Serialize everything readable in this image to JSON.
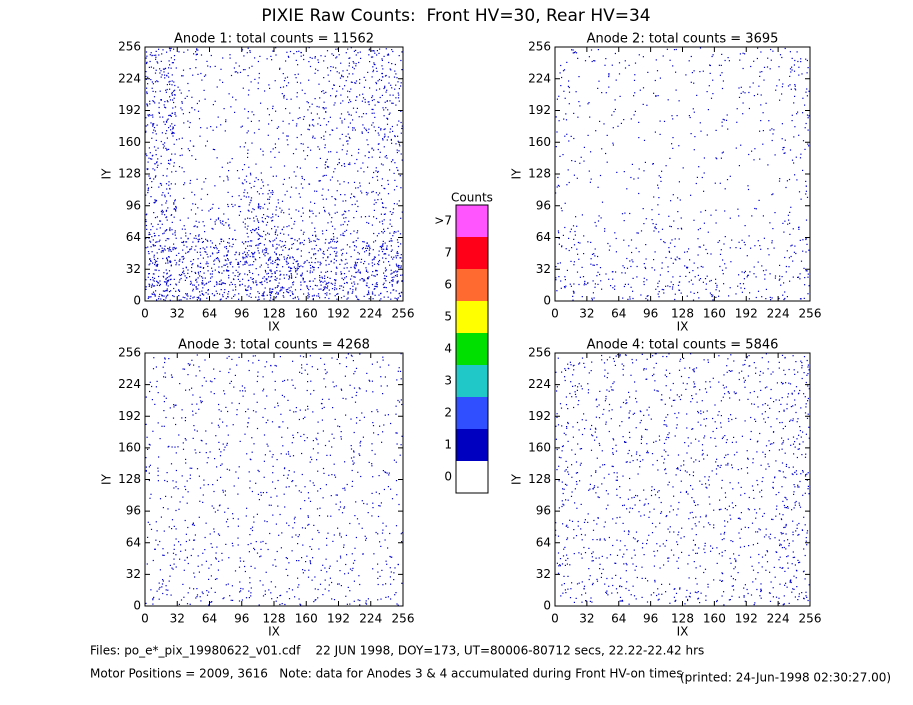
{
  "title": "PIXIE Raw Counts:  Front HV=30, Rear HV=34",
  "chart_data": [
    {
      "type": "density",
      "title": "Anode 1: total counts = 11562",
      "xlabel": "IX",
      "ylabel": "IY",
      "color": "#0000cc",
      "xlim": [
        0,
        256
      ],
      "ylim": [
        0,
        256
      ],
      "xticks": [
        0,
        32,
        64,
        96,
        128,
        160,
        192,
        224,
        256
      ],
      "yticks": [
        0,
        32,
        64,
        96,
        128,
        160,
        192,
        224,
        256
      ],
      "xbins": [
        0,
        32,
        64,
        96,
        128,
        160,
        192,
        224,
        256
      ],
      "ybins": [
        0,
        32,
        64,
        96,
        128,
        160,
        192,
        224,
        256
      ],
      "values": [
        [
          400,
          350,
          300,
          350,
          350,
          350,
          300,
          350
        ],
        [
          350,
          300,
          300,
          350,
          350,
          300,
          250,
          300
        ],
        [
          250,
          100,
          120,
          250,
          150,
          120,
          120,
          150
        ],
        [
          200,
          60,
          60,
          180,
          80,
          100,
          100,
          120
        ],
        [
          200,
          50,
          40,
          70,
          60,
          90,
          120,
          150
        ],
        [
          250,
          60,
          40,
          60,
          80,
          120,
          150,
          180
        ],
        [
          250,
          80,
          40,
          60,
          80,
          120,
          150,
          200
        ],
        [
          250,
          100,
          60,
          80,
          100,
          120,
          150,
          200
        ]
      ]
    },
    {
      "type": "density",
      "title": "Anode 2: total counts = 3695",
      "xlabel": "IX",
      "ylabel": "IY",
      "color": "#0000cc",
      "xlim": [
        0,
        256
      ],
      "ylim": [
        0,
        256
      ],
      "xticks": [
        0,
        32,
        64,
        96,
        128,
        160,
        192,
        224,
        256
      ],
      "yticks": [
        0,
        32,
        64,
        96,
        128,
        160,
        192,
        224,
        256
      ],
      "xbins": [
        0,
        32,
        64,
        96,
        128,
        160,
        192,
        224,
        256
      ],
      "ybins": [
        0,
        32,
        64,
        96,
        128,
        160,
        192,
        224,
        256
      ],
      "values": [
        [
          120,
          100,
          90,
          120,
          110,
          100,
          90,
          120
        ],
        [
          90,
          70,
          80,
          100,
          80,
          70,
          60,
          90
        ],
        [
          60,
          30,
          40,
          80,
          30,
          30,
          30,
          60
        ],
        [
          40,
          20,
          20,
          50,
          20,
          20,
          20,
          60
        ],
        [
          40,
          30,
          20,
          30,
          20,
          30,
          30,
          60
        ],
        [
          50,
          40,
          30,
          30,
          30,
          40,
          40,
          70
        ],
        [
          50,
          40,
          30,
          30,
          40,
          40,
          50,
          80
        ],
        [
          60,
          50,
          40,
          40,
          50,
          50,
          60,
          100
        ]
      ]
    },
    {
      "type": "density",
      "title": "Anode 3: total counts = 4268",
      "xlabel": "IX",
      "ylabel": "IY",
      "color": "#0000cc",
      "xlim": [
        0,
        256
      ],
      "ylim": [
        0,
        256
      ],
      "xticks": [
        0,
        32,
        64,
        96,
        128,
        160,
        192,
        224,
        256
      ],
      "yticks": [
        0,
        32,
        64,
        96,
        128,
        160,
        192,
        224,
        256
      ],
      "xbins": [
        0,
        32,
        64,
        96,
        128,
        160,
        192,
        224,
        256
      ],
      "ybins": [
        0,
        32,
        64,
        96,
        128,
        160,
        192,
        224,
        256
      ],
      "values": [
        [
          90,
          90,
          80,
          80,
          80,
          80,
          70,
          70
        ],
        [
          80,
          80,
          80,
          70,
          70,
          70,
          70,
          70
        ],
        [
          65,
          65,
          60,
          60,
          65,
          65,
          60,
          60
        ],
        [
          65,
          65,
          60,
          60,
          65,
          65,
          60,
          60
        ],
        [
          65,
          65,
          60,
          60,
          65,
          65,
          60,
          60
        ],
        [
          65,
          65,
          60,
          60,
          65,
          65,
          60,
          60
        ],
        [
          65,
          65,
          60,
          60,
          65,
          65,
          60,
          60
        ],
        [
          65,
          65,
          60,
          60,
          65,
          65,
          60,
          60
        ]
      ]
    },
    {
      "type": "density",
      "title": "Anode 4: total counts = 5846",
      "xlabel": "IX",
      "ylabel": "IY",
      "color": "#0000cc",
      "xlim": [
        0,
        256
      ],
      "ylim": [
        0,
        256
      ],
      "xticks": [
        0,
        32,
        64,
        96,
        128,
        160,
        192,
        224,
        256
      ],
      "yticks": [
        0,
        32,
        64,
        96,
        128,
        160,
        192,
        224,
        256
      ],
      "xbins": [
        0,
        32,
        64,
        96,
        128,
        160,
        192,
        224,
        256
      ],
      "ybins": [
        0,
        32,
        64,
        96,
        128,
        160,
        192,
        224,
        256
      ],
      "values": [
        [
          100,
          90,
          90,
          90,
          90,
          90,
          90,
          140
        ],
        [
          90,
          80,
          80,
          80,
          80,
          80,
          80,
          130
        ],
        [
          90,
          80,
          80,
          80,
          80,
          80,
          80,
          130
        ],
        [
          90,
          80,
          80,
          80,
          80,
          80,
          80,
          130
        ],
        [
          90,
          80,
          80,
          80,
          80,
          80,
          80,
          130
        ],
        [
          90,
          80,
          80,
          80,
          80,
          80,
          80,
          130
        ],
        [
          90,
          80,
          80,
          80,
          80,
          80,
          80,
          130
        ],
        [
          90,
          80,
          80,
          80,
          80,
          80,
          80,
          130
        ]
      ]
    }
  ],
  "colorbar": {
    "title": "Counts",
    "labels": [
      "0",
      "1",
      "2",
      "3",
      "4",
      "5",
      "6",
      "7",
      ">7"
    ],
    "colors": [
      "#ffffff",
      "#0000c0",
      "#3050ff",
      "#20c8c8",
      "#00e000",
      "#ffff00",
      "#ff6a30",
      "#ff0018",
      "#ff55ff"
    ]
  },
  "footer": {
    "files": "Files: po_e*_pix_19980622_v01.cdf    22 JUN 1998, DOY=173, UT=80006-80712 secs, 22.22-22.42 hrs",
    "motor": "Motor Positions = 2009, 3616   Note: data for Anodes 3 & 4 accumulated during Front HV-on times",
    "printed": "(printed: 24-Jun-1998 02:30:27.00)"
  }
}
